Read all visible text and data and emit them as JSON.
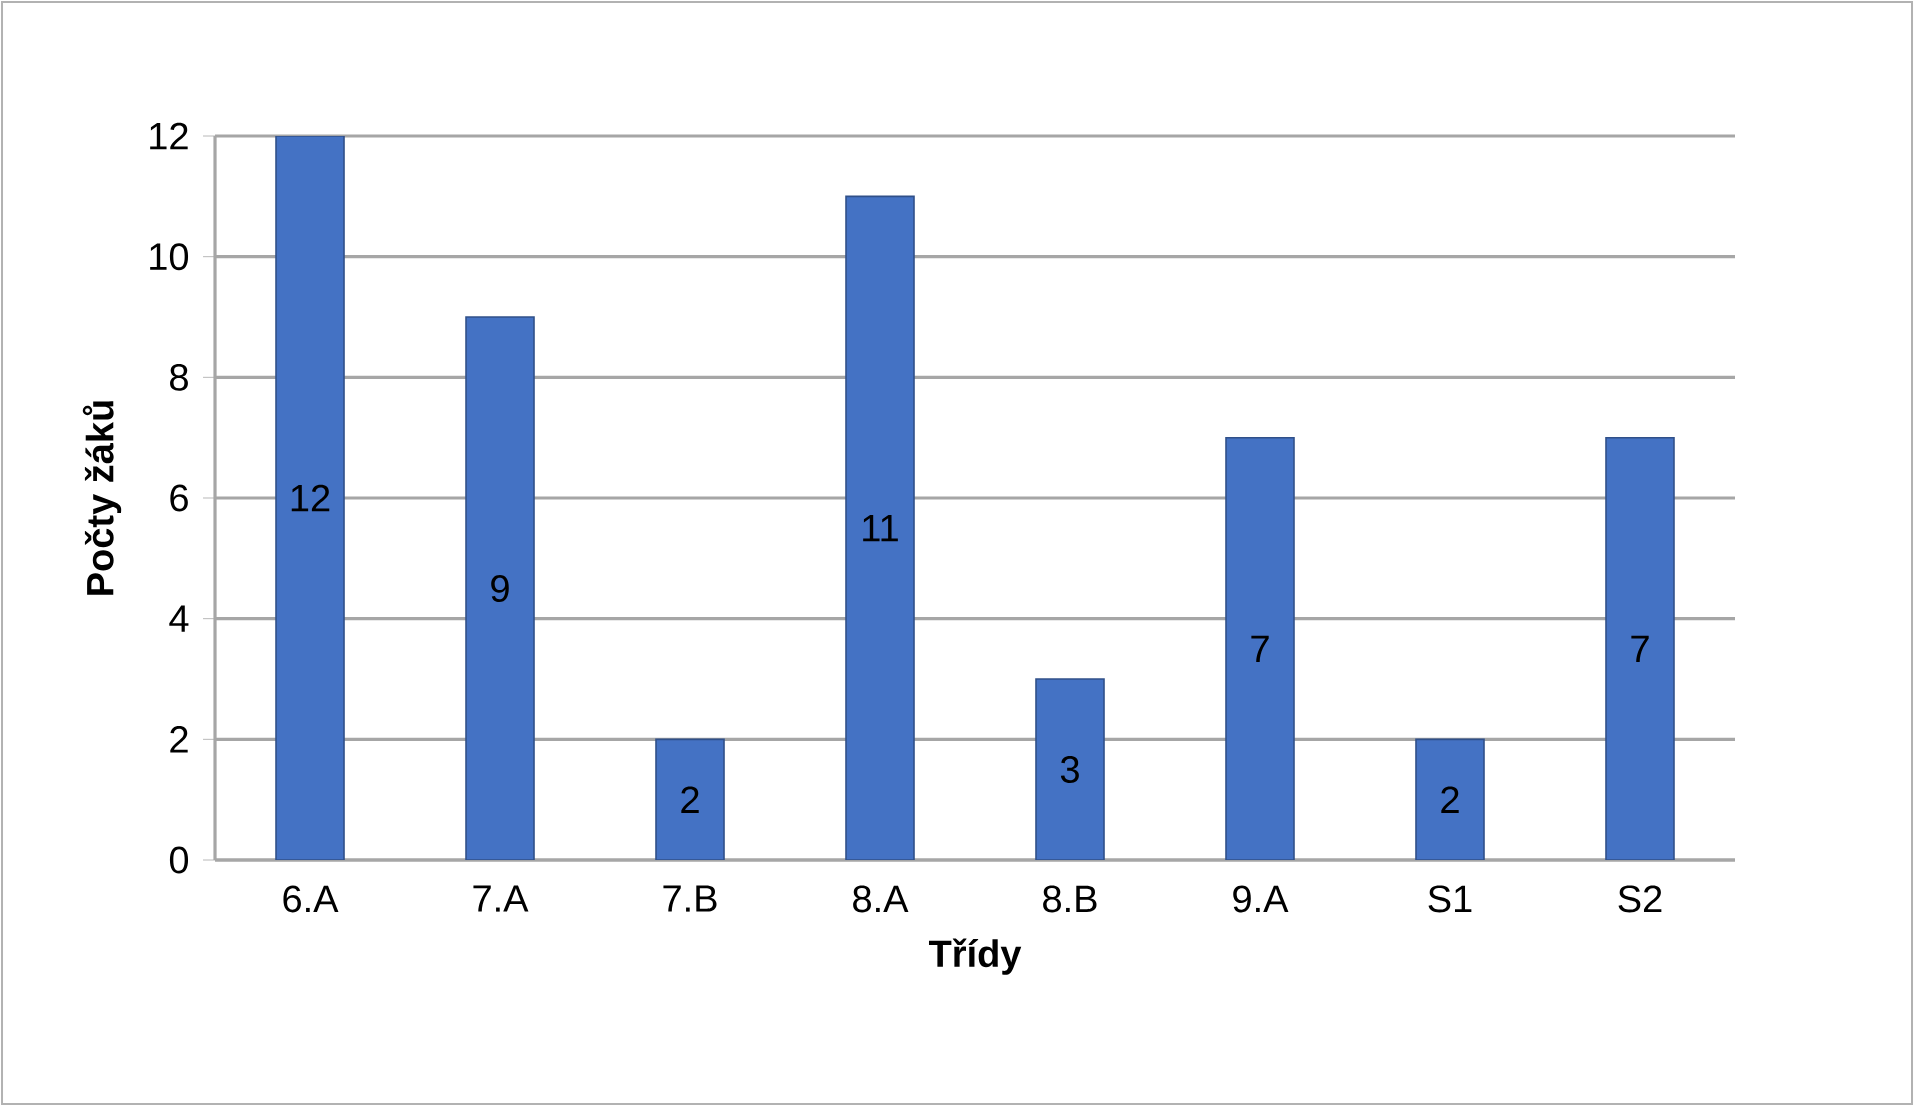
{
  "chart_data": {
    "type": "bar",
    "xlabel": "Třídy",
    "ylabel": "Počty žáků",
    "categories": [
      "6.A",
      "7.A",
      "7.B",
      "8.A",
      "8.B",
      "9.A",
      "S1",
      "S2"
    ],
    "values": [
      12,
      9,
      2,
      11,
      3,
      7,
      2,
      7
    ],
    "color": "#4472c4",
    "ylim": [
      0,
      12
    ],
    "yticks": [
      0,
      2,
      4,
      6,
      8,
      10,
      12
    ],
    "grid": "y",
    "data_labels": true
  }
}
